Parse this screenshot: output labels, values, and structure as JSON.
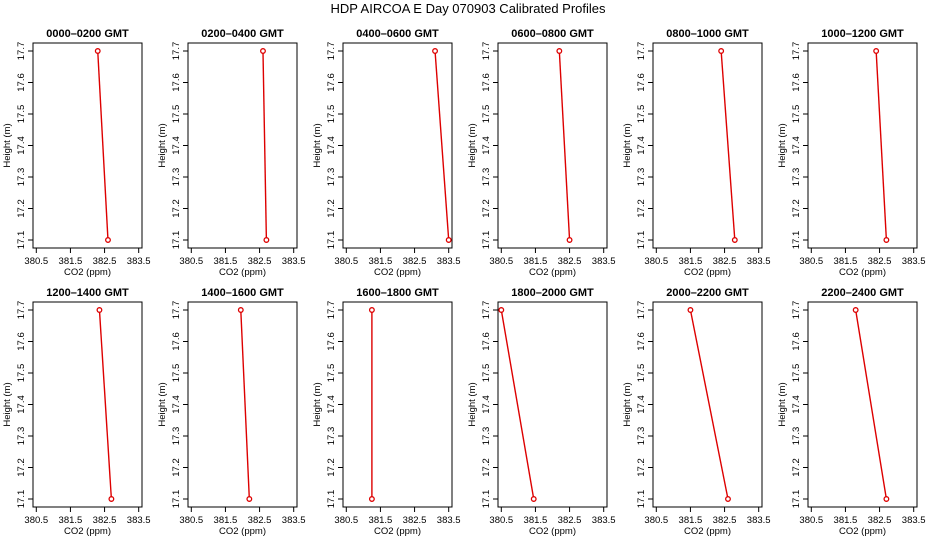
{
  "title": "HDP AIRCOA E  Day 070903  Calibrated Profiles",
  "chart_data": [
    {
      "type": "line",
      "title": "0000–0200 GMT",
      "xlabel": "CO2 (ppm)",
      "ylabel": "Height (m)",
      "xlim": [
        380.5,
        383.5
      ],
      "ylim": [
        17.1,
        17.7
      ],
      "x": [
        382.6,
        382.3
      ],
      "y": [
        17.1,
        17.7
      ]
    },
    {
      "type": "line",
      "title": "0200–0400 GMT",
      "xlabel": "CO2 (ppm)",
      "ylabel": "Height (m)",
      "xlim": [
        380.5,
        383.5
      ],
      "ylim": [
        17.1,
        17.7
      ],
      "x": [
        382.7,
        382.6
      ],
      "y": [
        17.1,
        17.7
      ]
    },
    {
      "type": "line",
      "title": "0400–0600 GMT",
      "xlabel": "CO2 (ppm)",
      "ylabel": "Height (m)",
      "xlim": [
        380.5,
        383.5
      ],
      "ylim": [
        17.1,
        17.7
      ],
      "x": [
        383.5,
        383.1
      ],
      "y": [
        17.1,
        17.7
      ]
    },
    {
      "type": "line",
      "title": "0600–0800 GMT",
      "xlabel": "CO2 (ppm)",
      "ylabel": "Height (m)",
      "xlim": [
        380.5,
        383.5
      ],
      "ylim": [
        17.1,
        17.7
      ],
      "x": [
        382.5,
        382.2
      ],
      "y": [
        17.1,
        17.7
      ]
    },
    {
      "type": "line",
      "title": "0800–1000 GMT",
      "xlabel": "CO2 (ppm)",
      "ylabel": "Height (m)",
      "xlim": [
        380.5,
        383.5
      ],
      "ylim": [
        17.1,
        17.7
      ],
      "x": [
        382.8,
        382.4
      ],
      "y": [
        17.1,
        17.7
      ]
    },
    {
      "type": "line",
      "title": "1000–1200 GMT",
      "xlabel": "CO2 (ppm)",
      "ylabel": "Height (m)",
      "xlim": [
        380.5,
        383.5
      ],
      "ylim": [
        17.1,
        17.7
      ],
      "x": [
        382.7,
        382.4
      ],
      "y": [
        17.1,
        17.7
      ]
    },
    {
      "type": "line",
      "title": "1200–1400 GMT",
      "xlabel": "CO2 (ppm)",
      "ylabel": "Height (m)",
      "xlim": [
        380.5,
        383.5
      ],
      "ylim": [
        17.1,
        17.7
      ],
      "x": [
        382.7,
        382.35
      ],
      "y": [
        17.1,
        17.7
      ]
    },
    {
      "type": "line",
      "title": "1400–1600 GMT",
      "xlabel": "CO2 (ppm)",
      "ylabel": "Height (m)",
      "xlim": [
        380.5,
        383.5
      ],
      "ylim": [
        17.1,
        17.7
      ],
      "x": [
        382.2,
        381.95
      ],
      "y": [
        17.1,
        17.7
      ]
    },
    {
      "type": "line",
      "title": "1600–1800 GMT",
      "xlabel": "CO2 (ppm)",
      "ylabel": "Height (m)",
      "xlim": [
        380.5,
        383.5
      ],
      "ylim": [
        17.1,
        17.7
      ],
      "x": [
        381.25,
        381.25
      ],
      "y": [
        17.1,
        17.7
      ]
    },
    {
      "type": "line",
      "title": "1800–2000 GMT",
      "xlabel": "CO2 (ppm)",
      "ylabel": "Height (m)",
      "xlim": [
        380.5,
        383.5
      ],
      "ylim": [
        17.1,
        17.7
      ],
      "x": [
        381.45,
        380.5
      ],
      "y": [
        17.1,
        17.7
      ]
    },
    {
      "type": "line",
      "title": "2000–2200 GMT",
      "xlabel": "CO2 (ppm)",
      "ylabel": "Height (m)",
      "xlim": [
        380.5,
        383.5
      ],
      "ylim": [
        17.1,
        17.7
      ],
      "x": [
        382.6,
        381.5
      ],
      "y": [
        17.1,
        17.7
      ]
    },
    {
      "type": "line",
      "title": "2200–2400 GMT",
      "xlabel": "CO2 (ppm)",
      "ylabel": "Height (m)",
      "xlim": [
        380.5,
        383.5
      ],
      "ylim": [
        17.1,
        17.7
      ],
      "x": [
        382.7,
        381.8
      ],
      "y": [
        17.1,
        17.7
      ]
    }
  ],
  "x_ticks": [
    "380.5",
    "381.5",
    "382.5",
    "383.5"
  ],
  "y_ticks": [
    "17.1",
    "17.2",
    "17.3",
    "17.4",
    "17.5",
    "17.6",
    "17.7"
  ],
  "line_color": "#dd0000",
  "axis_color": "#000000"
}
